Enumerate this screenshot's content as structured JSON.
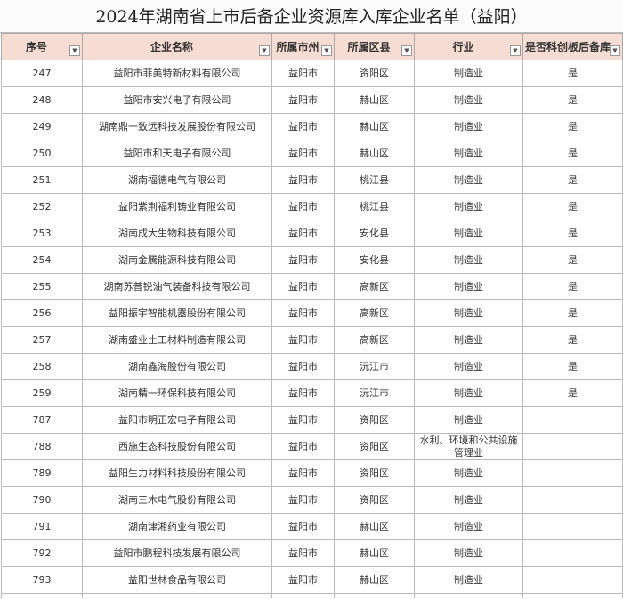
{
  "title": "2024年湖南省上市后备企业资源库入库企业名单（益阳）",
  "table": {
    "headers": [
      "序号",
      "企业名称",
      "所属市州",
      "所属区县",
      "行业",
      "是否科创板后备库"
    ],
    "rows": [
      [
        247,
        "益阳市菲美特新材料有限公司",
        "益阳市",
        "资阳区",
        "制造业",
        "是"
      ],
      [
        248,
        "益阳市安兴电子有限公司",
        "益阳市",
        "赫山区",
        "制造业",
        "是"
      ],
      [
        249,
        "湖南鼎一致远科技发展股份有限公司",
        "益阳市",
        "赫山区",
        "制造业",
        "是"
      ],
      [
        250,
        "益阳市和天电子有限公司",
        "益阳市",
        "赫山区",
        "制造业",
        "是"
      ],
      [
        251,
        "湖南福德电气有限公司",
        "益阳市",
        "桃江县",
        "制造业",
        "是"
      ],
      [
        252,
        "益阳紫荆福利铸业有限公司",
        "益阳市",
        "桃江县",
        "制造业",
        "是"
      ],
      [
        253,
        "湖南成大生物科技有限公司",
        "益阳市",
        "安化县",
        "制造业",
        "是"
      ],
      [
        254,
        "湖南金騰能源科技有限公司",
        "益阳市",
        "安化县",
        "制造业",
        "是"
      ],
      [
        255,
        "湖南苏普锐油气装备科技有限公司",
        "益阳市",
        "高新区",
        "制造业",
        "是"
      ],
      [
        256,
        "益阳振宇智能机器股份有限公司",
        "益阳市",
        "高新区",
        "制造业",
        "是"
      ],
      [
        257,
        "湖南盛业土工材料制造有限公司",
        "益阳市",
        "高新区",
        "制造业",
        "是"
      ],
      [
        258,
        "湖南鑫海股份有限公司",
        "益阳市",
        "沅江市",
        "制造业",
        "是"
      ],
      [
        259,
        "湖南精一环保科技有限公司",
        "益阳市",
        "沅江市",
        "制造业",
        "是"
      ],
      [
        787,
        "益阳市明正宏电子有限公司",
        "益阳市",
        "资阳区",
        "制造业",
        null
      ],
      [
        788,
        "西施生态科技股份有限公司",
        "益阳市",
        "资阳区",
        "水利、环境和公共设施管理业",
        null
      ],
      [
        789,
        "益阳生力材料科技股份有限公司",
        "益阳市",
        "资阳区",
        "制造业",
        null
      ],
      [
        790,
        "湖南三木电气股份有限公司",
        "益阳市",
        "资阳区",
        "制造业",
        null
      ],
      [
        791,
        "湖南津湘药业有限公司",
        "益阳市",
        "赫山区",
        "制造业",
        null
      ],
      [
        792,
        "益阳市鹏程科技发展有限公司",
        "益阳市",
        "赫山区",
        "制造业",
        null
      ],
      [
        793,
        "益阳世林食品有限公司",
        "益阳市",
        "赫山区",
        "制造业",
        null
      ]
    ]
  }
}
